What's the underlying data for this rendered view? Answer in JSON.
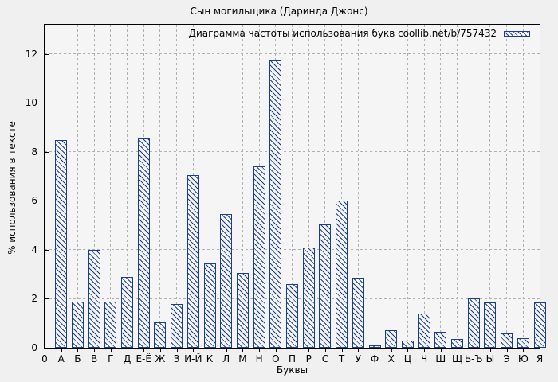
{
  "chart_data": {
    "type": "bar",
    "title": "Сын могильщика (Даринда Джонс)",
    "legend": "Диаграмма частоты использования букв coollib.net/b/757432",
    "legend_position": "top-right-inside",
    "xlabel": "Буквы",
    "ylabel": "% использования в тексте",
    "x_origin_label": "0",
    "categories": [
      "А",
      "Б",
      "В",
      "Г",
      "Д",
      "Е-Ё",
      "Ж",
      "З",
      "И-Й",
      "К",
      "Л",
      "М",
      "Н",
      "О",
      "П",
      "Р",
      "С",
      "Т",
      "У",
      "Ф",
      "Х",
      "Ц",
      "Ч",
      "Ш",
      "Щ",
      "Ь-Ъ",
      "Ы",
      "Э",
      "Ю",
      "Я"
    ],
    "values": [
      8.5,
      1.9,
      4.0,
      1.9,
      2.9,
      8.55,
      1.05,
      1.8,
      7.05,
      3.45,
      5.45,
      3.05,
      7.4,
      11.75,
      2.6,
      4.1,
      5.05,
      6.0,
      2.85,
      0.1,
      0.7,
      0.3,
      1.4,
      0.65,
      0.35,
      2.0,
      1.85,
      0.6,
      0.4,
      1.85
    ],
    "yticks": [
      0,
      2,
      4,
      6,
      8,
      10,
      12
    ],
    "ylim": [
      0,
      13.2
    ],
    "grid": true,
    "colors": {
      "bar_border": "#1a3d94",
      "bar_hatch": "#1a3d94",
      "grid": "#b0b0b0",
      "background": "#f0f0f0",
      "plot_background": "#f5f5f5",
      "axis": "#000000"
    }
  }
}
